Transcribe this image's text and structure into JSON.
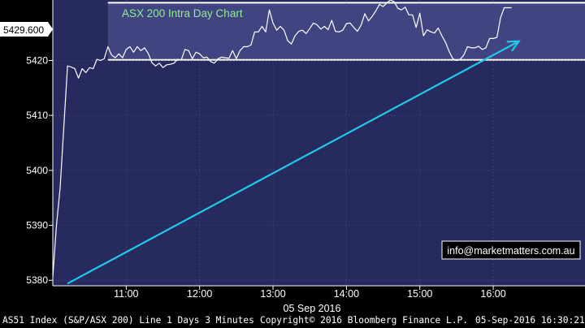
{
  "chart_data": {
    "type": "line",
    "title": "ASX 200 Intra Day Chart",
    "last_price_label": "5429.600",
    "date_label": "05 Sep 2016",
    "watermark": "info@marketmatters.com.au",
    "x_ticks": [
      "11:00",
      "12:00",
      "13:00",
      "14:00",
      "15:00",
      "16:00"
    ],
    "y_ticks": [
      5380,
      5390,
      5400,
      5410,
      5420
    ],
    "xlim": [
      "10:00",
      "17:15"
    ],
    "ylim": [
      5379,
      5431
    ],
    "series": [
      {
        "color": "#ffffff",
        "points": [
          [
            "10:00",
            5380.6
          ],
          [
            "10:03",
            5390.0
          ],
          [
            "10:06",
            5396.8
          ],
          [
            "10:09",
            5408.0
          ],
          [
            "10:12",
            5419.0
          ],
          [
            "10:15",
            5418.8
          ],
          [
            "10:18",
            5418.5
          ],
          [
            "10:21",
            5416.8
          ],
          [
            "10:24",
            5418.5
          ],
          [
            "10:27",
            5417.8
          ],
          [
            "10:30",
            5418.7
          ],
          [
            "10:33",
            5418.5
          ],
          [
            "10:36",
            5420.2
          ],
          [
            "10:39",
            5420.0
          ],
          [
            "10:42",
            5420.3
          ],
          [
            "10:45",
            5422.5
          ],
          [
            "10:48",
            5421.0
          ],
          [
            "10:51",
            5420.5
          ],
          [
            "10:54",
            5421.2
          ],
          [
            "10:57",
            5420.5
          ],
          [
            "11:00",
            5422.0
          ],
          [
            "11:03",
            5422.5
          ],
          [
            "11:06",
            5421.5
          ],
          [
            "11:09",
            5422.5
          ],
          [
            "11:12",
            5421.8
          ],
          [
            "11:15",
            5422.3
          ],
          [
            "11:18",
            5421.3
          ],
          [
            "11:21",
            5419.6
          ],
          [
            "11:24",
            5419.0
          ],
          [
            "11:27",
            5419.5
          ],
          [
            "11:30",
            5418.7
          ],
          [
            "11:33",
            5419.2
          ],
          [
            "11:36",
            5419.3
          ],
          [
            "11:39",
            5419.5
          ],
          [
            "11:42",
            5420.2
          ],
          [
            "11:45",
            5420.1
          ],
          [
            "11:48",
            5422.0
          ],
          [
            "11:51",
            5421.8
          ],
          [
            "11:54",
            5420.3
          ],
          [
            "11:57",
            5421.5
          ],
          [
            "12:00",
            5421.2
          ],
          [
            "12:03",
            5420.5
          ],
          [
            "12:06",
            5420.6
          ],
          [
            "12:09",
            5419.8
          ],
          [
            "12:12",
            5419.5
          ],
          [
            "12:15",
            5420.3
          ],
          [
            "12:18",
            5420.6
          ],
          [
            "12:21",
            5420.5
          ],
          [
            "12:24",
            5420.4
          ],
          [
            "12:27",
            5421.8
          ],
          [
            "12:30",
            5420.3
          ],
          [
            "12:33",
            5421.8
          ],
          [
            "12:36",
            5422.5
          ],
          [
            "12:39",
            5422.5
          ],
          [
            "12:42",
            5422.8
          ],
          [
            "12:45",
            5425.2
          ],
          [
            "12:48",
            5425.2
          ],
          [
            "12:51",
            5426.2
          ],
          [
            "12:54",
            5425.2
          ],
          [
            "12:57",
            5429.2
          ],
          [
            "13:00",
            5426.8
          ],
          [
            "13:03",
            5425.5
          ],
          [
            "13:06",
            5426.2
          ],
          [
            "13:09",
            5425.5
          ],
          [
            "13:12",
            5423.6
          ],
          [
            "13:15",
            5423.0
          ],
          [
            "13:18",
            5424.5
          ],
          [
            "13:21",
            5425.3
          ],
          [
            "13:24",
            5425.5
          ],
          [
            "13:27",
            5424.9
          ],
          [
            "13:30",
            5425.8
          ],
          [
            "13:33",
            5426.8
          ],
          [
            "13:36",
            5426.5
          ],
          [
            "13:39",
            5425.7
          ],
          [
            "13:42",
            5426.2
          ],
          [
            "13:45",
            5425.6
          ],
          [
            "13:48",
            5427.3
          ],
          [
            "13:51",
            5425.3
          ],
          [
            "13:54",
            5425.2
          ],
          [
            "13:57",
            5425.5
          ],
          [
            "14:00",
            5426.7
          ],
          [
            "14:03",
            5426.8
          ],
          [
            "14:06",
            5426.0
          ],
          [
            "14:09",
            5425.3
          ],
          [
            "14:12",
            5426.4
          ],
          [
            "14:15",
            5428.5
          ],
          [
            "14:18",
            5427.2
          ],
          [
            "14:21",
            5428.0
          ],
          [
            "14:24",
            5429.0
          ],
          [
            "14:27",
            5430.2
          ],
          [
            "14:30",
            5429.8
          ],
          [
            "14:33",
            5430.5
          ],
          [
            "14:36",
            5431.0
          ],
          [
            "14:39",
            5430.7
          ],
          [
            "14:42",
            5429.5
          ],
          [
            "14:45",
            5429.2
          ],
          [
            "14:48",
            5429.7
          ],
          [
            "14:51",
            5428.3
          ],
          [
            "14:54",
            5428.3
          ],
          [
            "14:57",
            5426.0
          ],
          [
            "15:00",
            5428.6
          ],
          [
            "15:03",
            5424.5
          ],
          [
            "15:06",
            5425.6
          ],
          [
            "15:09",
            5425.2
          ],
          [
            "15:12",
            5425.0
          ],
          [
            "15:15",
            5425.9
          ],
          [
            "15:18",
            5424.5
          ],
          [
            "15:21",
            5423.3
          ],
          [
            "15:24",
            5421.6
          ],
          [
            "15:27",
            5420.3
          ],
          [
            "15:30",
            5420.0
          ],
          [
            "15:33",
            5420.2
          ],
          [
            "15:36",
            5421.0
          ],
          [
            "15:39",
            5422.5
          ],
          [
            "15:42",
            5422.3
          ],
          [
            "15:45",
            5422.3
          ],
          [
            "15:48",
            5422.6
          ],
          [
            "15:51",
            5422.0
          ],
          [
            "15:54",
            5422.3
          ],
          [
            "15:57",
            5424.0
          ],
          [
            "16:00",
            5424.0
          ],
          [
            "16:03",
            5424.2
          ],
          [
            "16:06",
            5427.8
          ],
          [
            "16:09",
            5429.6
          ],
          [
            "16:12",
            5429.6
          ],
          [
            "16:15",
            5429.6
          ]
        ]
      }
    ],
    "annotations": {
      "range_band": {
        "low": 5420.1,
        "high": 5430.5,
        "start": "10:45",
        "end": "17:15"
      },
      "arrow": {
        "start": [
          "10:12",
          5379.4
        ],
        "end": [
          "16:21",
          5423.5
        ]
      }
    },
    "colors": {
      "plot_bg": "#262a5e",
      "band_fill": "#4a4f8e",
      "arrow": "#22c8e8",
      "title": "#90ee90",
      "axis_text": "#ffffff"
    }
  },
  "footer": {
    "left": "AS51 Index (S&P/ASX 200) Line 1 Days 3 Minutes",
    "right": "Copyright© 2016 Bloomberg Finance L.P.",
    "timestamp": "05-Sep-2016 16:30:21"
  }
}
